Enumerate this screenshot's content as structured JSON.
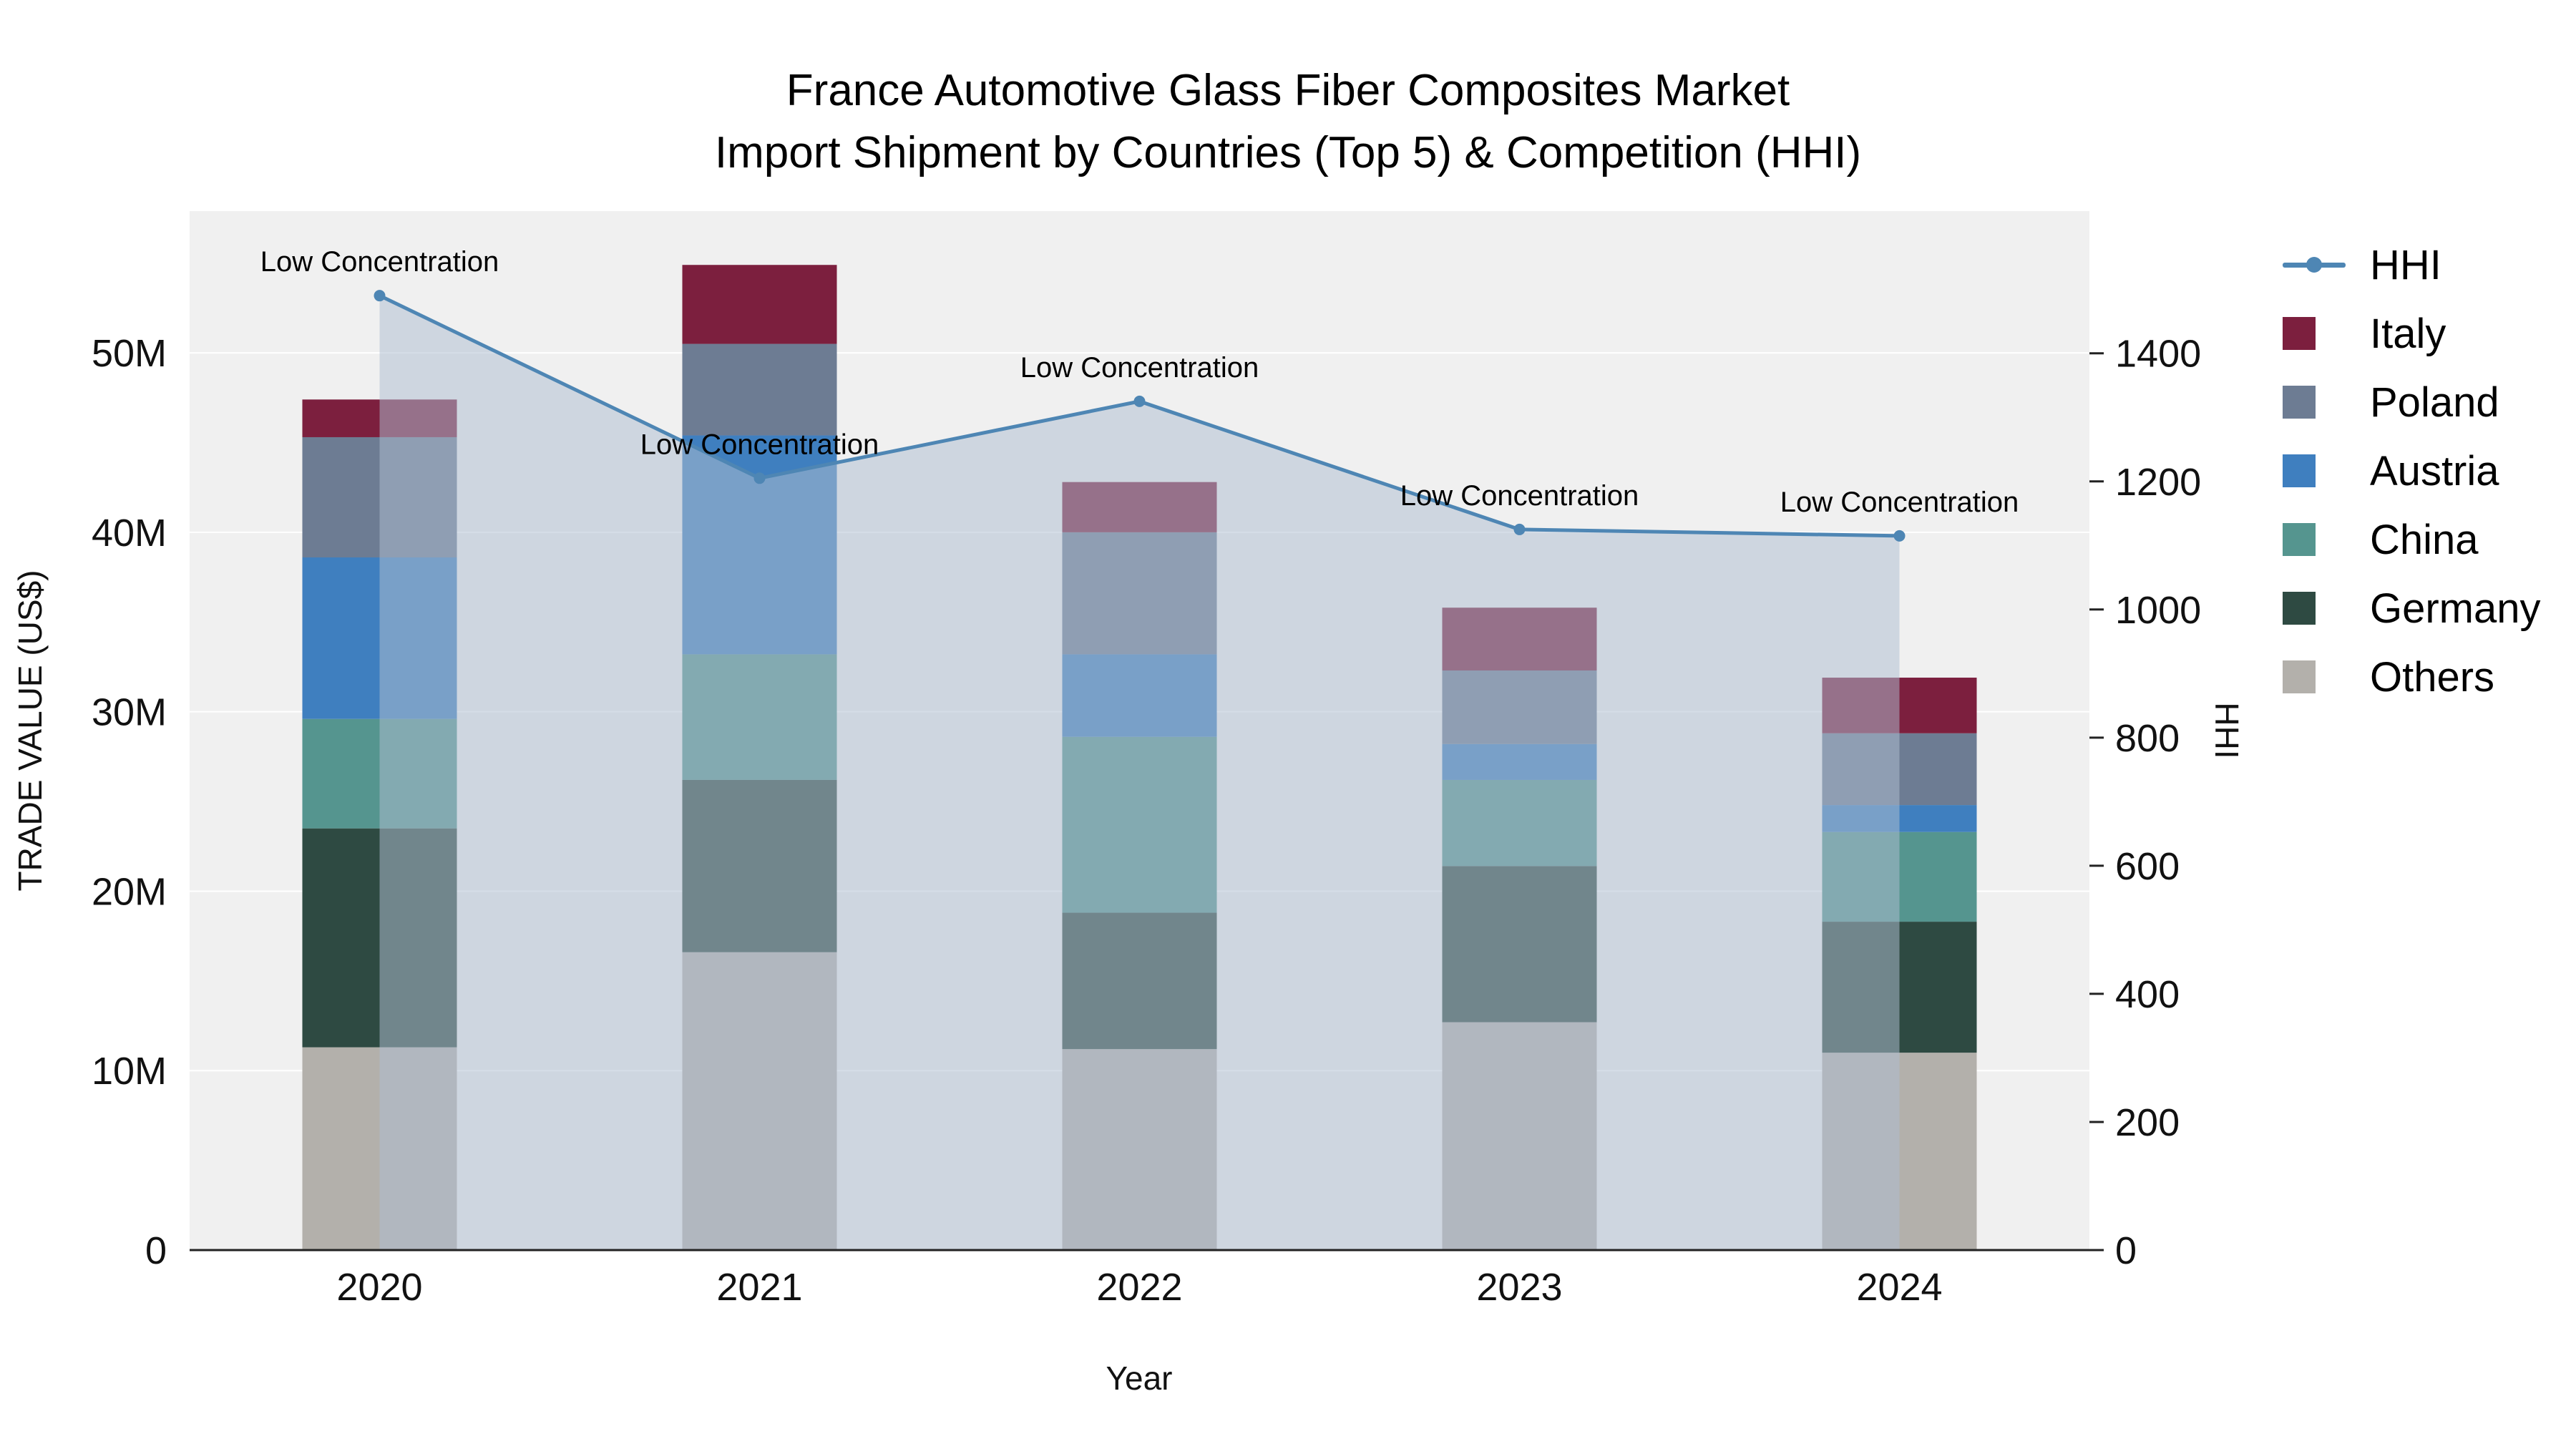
{
  "title": {
    "line1": "France Automotive Glass Fiber Composites Market",
    "line2": "Import Shipment by Countries (Top 5) & Competition (HHI)"
  },
  "axes": {
    "left_title": "TRADE VALUE (US$)",
    "right_title": "HHI",
    "x_title": "Year"
  },
  "legend": {
    "items": [
      {
        "label": "HHI",
        "type": "line",
        "color": "#4e86b4"
      },
      {
        "label": "Italy",
        "type": "square",
        "color": "#7c1f3e"
      },
      {
        "label": "Poland",
        "type": "square",
        "color": "#6d7c93"
      },
      {
        "label": "Austria",
        "type": "square",
        "color": "#3f7fbf"
      },
      {
        "label": "China",
        "type": "square",
        "color": "#55958f"
      },
      {
        "label": "Germany",
        "type": "square",
        "color": "#2e4a42"
      },
      {
        "label": "Others",
        "type": "square",
        "color": "#b3b0ab"
      }
    ]
  },
  "chart_data": {
    "type": "bar",
    "stacked": true,
    "title": "France Automotive Glass Fiber Composites Market Import Shipment by Countries (Top 5) & Competition (HHI)",
    "xlabel": "Year",
    "ylabel": "TRADE VALUE (US$)",
    "y2label": "HHI",
    "unit": "million US$",
    "categories": [
      "2020",
      "2021",
      "2022",
      "2023",
      "2024"
    ],
    "series": [
      {
        "name": "Others",
        "color": "#b3b0ab",
        "values": [
          11.3,
          16.6,
          11.2,
          12.7,
          11.0
        ]
      },
      {
        "name": "Germany",
        "color": "#2e4a42",
        "values": [
          12.2,
          9.6,
          7.6,
          8.7,
          7.3
        ]
      },
      {
        "name": "China",
        "color": "#55958f",
        "values": [
          6.1,
          7.0,
          9.8,
          4.8,
          5.0
        ]
      },
      {
        "name": "Austria",
        "color": "#3f7fbf",
        "values": [
          9.0,
          12.2,
          4.6,
          2.0,
          1.5
        ]
      },
      {
        "name": "Poland",
        "color": "#6d7c93",
        "values": [
          6.7,
          5.1,
          6.8,
          4.1,
          4.0
        ]
      },
      {
        "name": "Italy",
        "color": "#7c1f3e",
        "values": [
          2.1,
          4.4,
          2.8,
          3.5,
          3.1
        ]
      }
    ],
    "line_series": {
      "name": "HHI",
      "axis": "right",
      "color": "#4e86b4",
      "marker_color": "#4e86b4",
      "area_fill": "rgba(174,190,209,0.52)",
      "values": [
        1490,
        1205,
        1325,
        1125,
        1115
      ]
    },
    "annotations": [
      {
        "text": "Low Concentration",
        "x": "2020",
        "y": 1490
      },
      {
        "text": "Low Concentration",
        "x": "2021",
        "y": 1205
      },
      {
        "text": "Low Concentration",
        "x": "2022",
        "y": 1325
      },
      {
        "text": "Low Concentration",
        "x": "2023",
        "y": 1125
      },
      {
        "text": "Low Concentration",
        "x": "2024",
        "y": 1115
      }
    ],
    "ylim": [
      0,
      57.9
    ],
    "y2lim": [
      0,
      1622
    ],
    "yticks": [
      {
        "value": 0,
        "label": "0"
      },
      {
        "value": 10,
        "label": "10M"
      },
      {
        "value": 20,
        "label": "20M"
      },
      {
        "value": 30,
        "label": "30M"
      },
      {
        "value": 40,
        "label": "40M"
      },
      {
        "value": 50,
        "label": "50M"
      }
    ],
    "y2ticks": [
      {
        "value": 0,
        "label": "0"
      },
      {
        "value": 200,
        "label": "200"
      },
      {
        "value": 400,
        "label": "400"
      },
      {
        "value": 600,
        "label": "600"
      },
      {
        "value": 800,
        "label": "800"
      },
      {
        "value": 1000,
        "label": "1000"
      },
      {
        "value": 1200,
        "label": "1200"
      },
      {
        "value": 1400,
        "label": "1400"
      }
    ],
    "grid": true,
    "grid_color": "#ffffff",
    "plot_bg": "#f0f0f0",
    "legend_position": "right"
  }
}
